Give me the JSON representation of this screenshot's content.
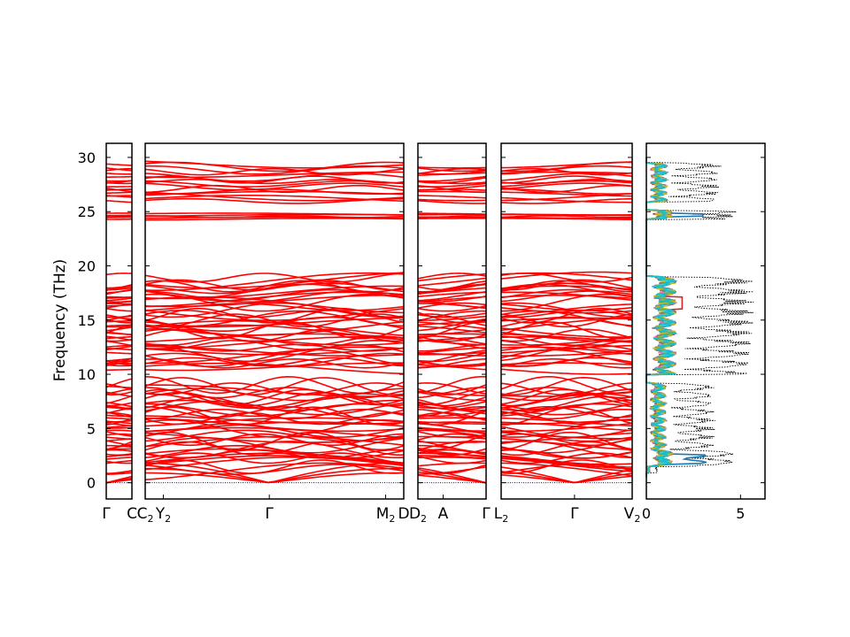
{
  "chart_data": {
    "type": "line",
    "ylabel": "Frequency (THz)",
    "ylim": [
      -1.5,
      31.3
    ],
    "yticks": [
      "0",
      "5",
      "10",
      "15",
      "20",
      "25",
      "30"
    ],
    "ytick_values": [
      0,
      5,
      10,
      15,
      20,
      25,
      30
    ],
    "band_color": "#ff0000",
    "zero_line_color": "#0000cc",
    "bands": {
      "low_block": {
        "min": 1.0,
        "max": 9.2
      },
      "mid_block": {
        "min": 10.5,
        "max": 19.0
      },
      "high_block_a": {
        "min": 24.3,
        "max": 24.9
      },
      "high_block_b": {
        "min": 25.9,
        "max": 29.5
      },
      "acoustic_max": 1.8
    },
    "band_panels": [
      {
        "k_ticks": [
          {
            "sym": "Γ",
            "sub": "",
            "at": 0
          },
          {
            "sym": "C",
            "sub": "",
            "at": 1
          }
        ],
        "gamma_at": 0
      },
      {
        "k_ticks": [
          {
            "sym": "C",
            "sub": "2",
            "at": 0
          },
          {
            "sym": "Y",
            "sub": "2",
            "at": 0.07
          },
          {
            "sym": "Γ",
            "sub": "",
            "at": 0.48
          },
          {
            "sym": "M",
            "sub": "2",
            "at": 0.93
          },
          {
            "sym": "D",
            "sub": "",
            "at": 1
          }
        ],
        "gamma_at": 0.48
      },
      {
        "k_ticks": [
          {
            "sym": "D",
            "sub": "2",
            "at": 0
          },
          {
            "sym": "A",
            "sub": "",
            "at": 0.37
          },
          {
            "sym": "Γ",
            "sub": "",
            "at": 1
          }
        ],
        "gamma_at": 1
      },
      {
        "k_ticks": [
          {
            "sym": "L",
            "sub": "2",
            "at": 0
          },
          {
            "sym": "Γ",
            "sub": "",
            "at": 0.56
          },
          {
            "sym": "V",
            "sub": "2",
            "at": 1
          }
        ],
        "gamma_at": 0.56
      }
    ],
    "dos_panel": {
      "xlim": [
        0,
        6.3
      ],
      "xticks": [
        "0",
        "5"
      ],
      "xtick_values": [
        0,
        5
      ],
      "total_dos_style": "black dotted",
      "projected_colors": [
        "#1f77b4",
        "#ff7f0e",
        "#2ca02c",
        "#d62728",
        "#9467bd",
        "#8c564b",
        "#e377c2",
        "#7f7f7f",
        "#bcbd22",
        "#17becf"
      ]
    }
  }
}
